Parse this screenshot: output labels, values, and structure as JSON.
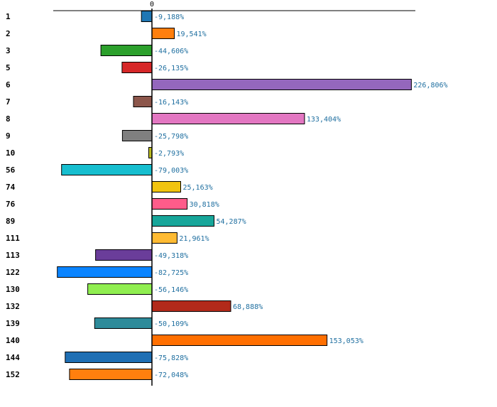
{
  "chart_data": {
    "type": "bar",
    "orientation": "horizontal",
    "title": "",
    "xlabel": "",
    "ylabel": "",
    "zero_tick_label": "0",
    "xlim": [
      -100,
      240
    ],
    "categories": [
      "1",
      "2",
      "3",
      "5",
      "6",
      "7",
      "8",
      "9",
      "10",
      "56",
      "74",
      "76",
      "89",
      "111",
      "113",
      "122",
      "130",
      "132",
      "139",
      "140",
      "144",
      "152"
    ],
    "values": [
      -9.188,
      19.541,
      -44.606,
      -26.135,
      226.806,
      -16.143,
      133.404,
      -25.798,
      -2.793,
      -79.003,
      25.163,
      30.818,
      54.287,
      21.961,
      -49.318,
      -82.725,
      -56.146,
      68.888,
      -50.109,
      153.053,
      -75.828,
      -72.048
    ],
    "value_labels": [
      "-9,188%",
      "19,541%",
      "-44,606%",
      "-26,135%",
      "226,806%",
      "-16,143%",
      "133,404%",
      "-25,798%",
      "-2,793%",
      "-79,003%",
      "25,163%",
      "30,818%",
      "54,287%",
      "21,961%",
      "-49,318%",
      "-82,725%",
      "-56,146%",
      "68,888%",
      "-50,109%",
      "153,053%",
      "-75,828%",
      "-72,048%"
    ],
    "colors": [
      "#1f77b4",
      "#ff7f0e",
      "#2ca02c",
      "#d62728",
      "#9467bd",
      "#8c564b",
      "#e377c2",
      "#7f7f7f",
      "#bcbd22",
      "#17becf",
      "#f1c40f",
      "#ff5c8a",
      "#17a69a",
      "#ffbb33",
      "#6a3d9a",
      "#0a84ff",
      "#90ee50",
      "#b22a1a",
      "#2e8b9a",
      "#ff6f00",
      "#1f6fb4",
      "#ff7f0e"
    ],
    "grid": false,
    "legend": "none"
  }
}
